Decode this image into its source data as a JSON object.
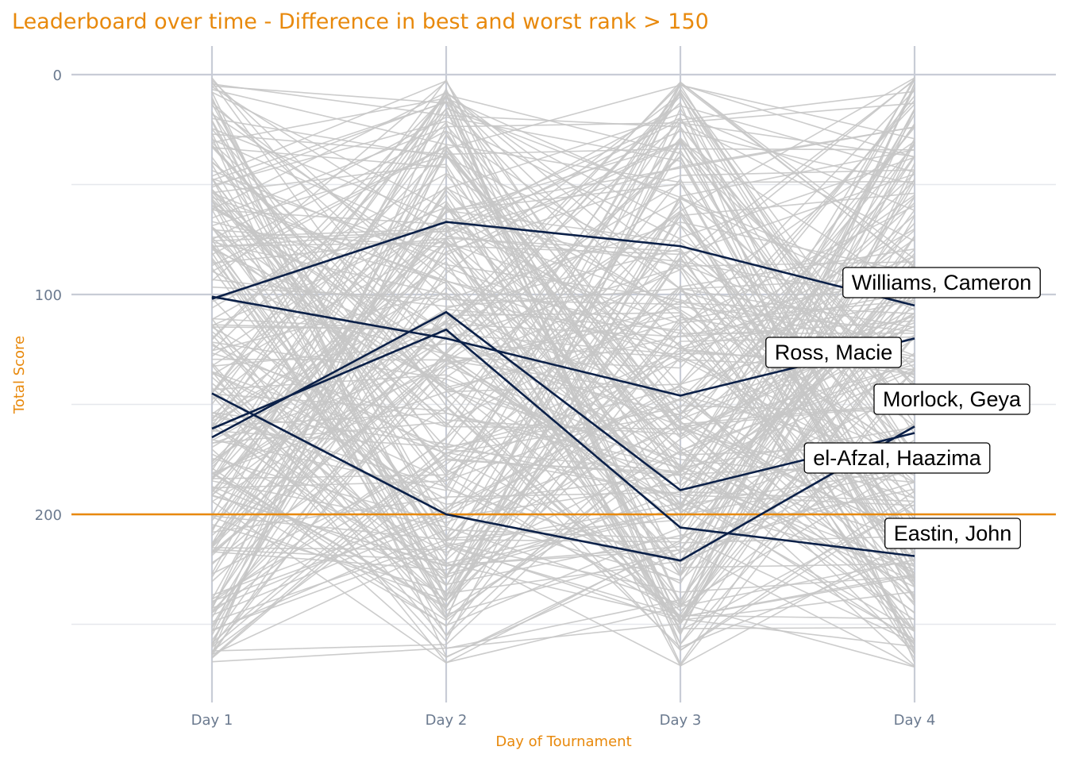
{
  "chart_data": {
    "type": "line",
    "title": "Leaderboard over time - Difference in best and worst rank > 150",
    "xlabel": "Day of Tournament",
    "ylabel": "Total Score",
    "categories": [
      "Day 1",
      "Day 2",
      "Day 3",
      "Day 4"
    ],
    "ylim": [
      0,
      270
    ],
    "y_reversed": true,
    "yticks": [
      0,
      100,
      200
    ],
    "grid": true,
    "reference_line": {
      "y": 200
    },
    "colors": {
      "title": "#e8890c",
      "axis_title": "#e8890c",
      "reference_line": "#e8890c",
      "highlight": "#0b2048",
      "background_lines": "#c6c6c6",
      "grid_major": "#c8ccd6",
      "grid_minor": "#e6e8ed",
      "tick_text": "#6b7a8f"
    },
    "background_series": {
      "count": 260,
      "value_range": [
        1,
        270
      ],
      "note_visible": false
    },
    "series": [
      {
        "name": "Williams, Cameron",
        "values": [
          102,
          67,
          78,
          105
        ]
      },
      {
        "name": "Ross, Macie",
        "values": [
          101,
          120,
          146,
          120
        ]
      },
      {
        "name": "Morlock, Geya",
        "values": [
          145,
          200,
          221,
          160
        ]
      },
      {
        "name": "el-Afzal, Haazima",
        "values": [
          165,
          108,
          189,
          163
        ]
      },
      {
        "name": "Eastin, John",
        "values": [
          161,
          116,
          206,
          219
        ]
      }
    ]
  }
}
